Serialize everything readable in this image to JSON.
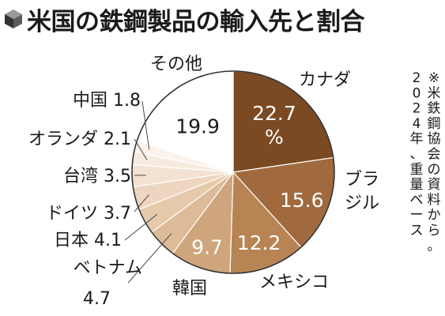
{
  "header": {
    "title": "米国の鉄鋼製品の輸入先と割合",
    "icon": "cube-icon"
  },
  "note": "※米鉄鋼協会の資料から。2024年、重量ベース",
  "colors": {
    "leader": "#4a4a4a",
    "slice_border": "#ffffff",
    "outline": "#333333",
    "icon": "#333333"
  },
  "chart_data": {
    "type": "pie",
    "title": "米国の鉄鋼製品の輸入先と割合",
    "unit": "%",
    "start": "12 o'clock",
    "direction": "clockwise",
    "slices": [
      {
        "name": "カナダ",
        "value": 22.7,
        "color": "#7b4a22",
        "text_color": "#ffffff",
        "value_text": "22.7",
        "value_unit": "%"
      },
      {
        "name": "ブラジル",
        "value": 15.6,
        "color": "#a06a3e",
        "text_color": "#ffffff",
        "value_text": "15.6"
      },
      {
        "name": "メキシコ",
        "value": 12.2,
        "color": "#b88454",
        "text_color": "#ffffff",
        "value_text": "12.2"
      },
      {
        "name": "韓国",
        "value": 9.7,
        "color": "#cfa57c",
        "text_color": "#ffffff",
        "value_text": "9.7"
      },
      {
        "name": "ベトナム",
        "value": 4.7,
        "color": "#ddbb98",
        "text_color": "#1a1a1a",
        "value_text": "4.7"
      },
      {
        "name": "日本",
        "value": 4.1,
        "color": "#e6c9ab",
        "text_color": "#1a1a1a",
        "value_text": "4.1"
      },
      {
        "name": "ドイツ",
        "value": 3.7,
        "color": "#edd6bf",
        "text_color": "#1a1a1a",
        "value_text": "3.7"
      },
      {
        "name": "台湾",
        "value": 3.5,
        "color": "#f3e2d2",
        "text_color": "#1a1a1a",
        "value_text": "3.5"
      },
      {
        "name": "オランダ",
        "value": 2.1,
        "color": "#f7ebe0",
        "text_color": "#1a1a1a",
        "value_text": "2.1"
      },
      {
        "name": "中国",
        "value": 1.8,
        "color": "#fbf3eb",
        "text_color": "#1a1a1a",
        "value_text": "1.8"
      },
      {
        "name": "その他",
        "value": 19.9,
        "color": "#ffffff",
        "text_color": "#1a1a1a",
        "value_text": "19.9"
      }
    ]
  }
}
